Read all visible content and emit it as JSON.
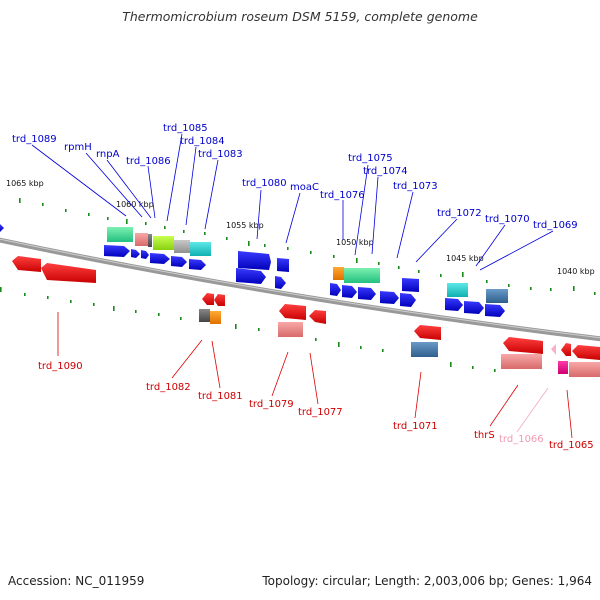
{
  "title": "Thermomicrobium roseum DSM 5159, complete genome",
  "footer": {
    "accession": "Accession: NC_011959",
    "summary": "Topology: circular; Length: 2,003,006 bp; Genes: 1,964"
  },
  "scale_labels": [
    "1065 kbp",
    "1060 kbp",
    "1055 kbp",
    "1050 kbp",
    "1045 kbp",
    "1040 kbp"
  ],
  "upper_gene_labels": [
    "trd_1089",
    "rpmH",
    "rnpA",
    "trd_1086",
    "trd_1085",
    "trd_1084",
    "trd_1083",
    "trd_1080",
    "moaC",
    "trd_1076",
    "trd_1075",
    "trd_1074",
    "trd_1073",
    "trd_1072",
    "trd_1070",
    "trd_1069"
  ],
  "lower_gene_labels": [
    "trd_1090",
    "trd_1082",
    "trd_1081",
    "trd_1079",
    "trd_1077",
    "trd_1071",
    "thrS",
    "trd_1066",
    "trd_1065"
  ],
  "colors": {
    "forward_cds": "#1a1aee",
    "reverse_cds": "#ee1111",
    "backbone": "#888888",
    "forward_label": "#0000cc",
    "reverse_label": "#cc0000",
    "trna_label": "#f09ab0"
  }
}
